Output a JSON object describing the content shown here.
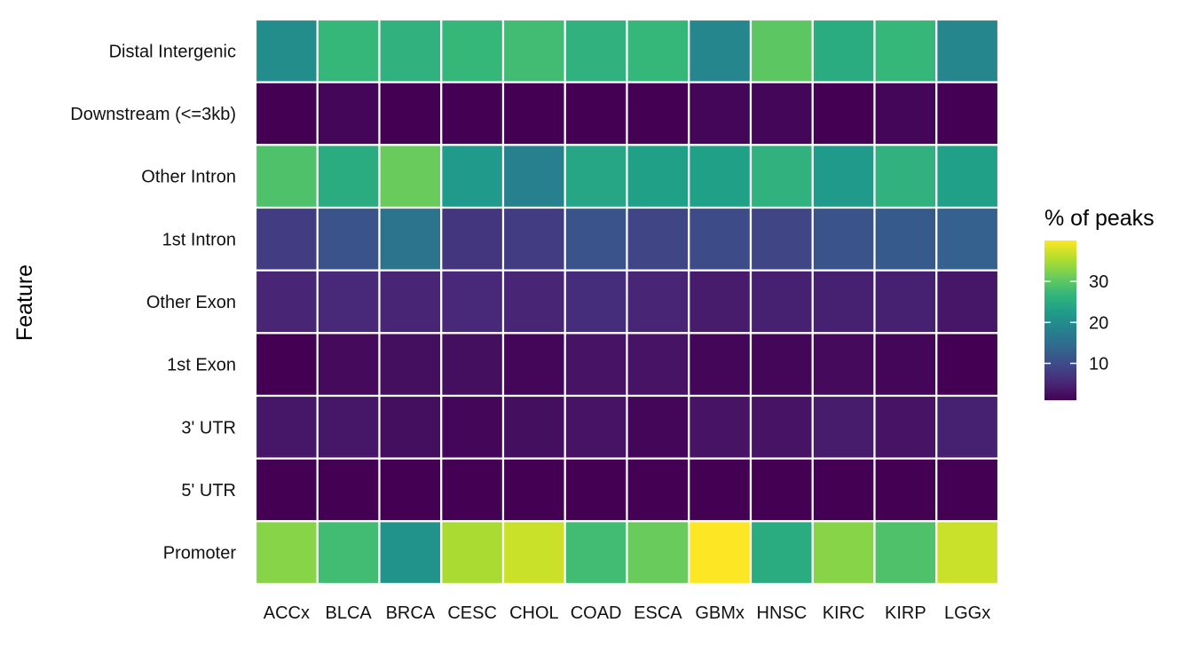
{
  "chart_data": {
    "type": "heatmap",
    "title": "",
    "xlabel": "",
    "ylabel": "Feature",
    "x_categories": [
      "ACCx",
      "BLCA",
      "BRCA",
      "CESC",
      "CHOL",
      "COAD",
      "ESCA",
      "GBMx",
      "HNSC",
      "KIRC",
      "KIRP",
      "LGGx"
    ],
    "y_categories": [
      "Distal Intergenic",
      "Downstream (<=3kb)",
      "Other Intron",
      "1st Intron",
      "Other Exon",
      "1st Exon",
      "3' UTR",
      "5' UTR",
      "Promoter"
    ],
    "values": [
      [
        20,
        27,
        26,
        27,
        28,
        26,
        27,
        19,
        30,
        25,
        27,
        19
      ],
      [
        1,
        1.5,
        1,
        1,
        1,
        1,
        1,
        1.5,
        1.5,
        1,
        1.5,
        1
      ],
      [
        29,
        25,
        31,
        22,
        18,
        24,
        23,
        23,
        26,
        22,
        26,
        23
      ],
      [
        8,
        11,
        16,
        7,
        8,
        11,
        9,
        10,
        9,
        11,
        12,
        13
      ],
      [
        5,
        5.5,
        5,
        5.5,
        5,
        6,
        5,
        4,
        4.5,
        4.5,
        4.5,
        3.5
      ],
      [
        1,
        2,
        2.5,
        2.5,
        1.5,
        3,
        3,
        1.5,
        1.5,
        2,
        1.5,
        1
      ],
      [
        3.5,
        3.5,
        2.5,
        1.5,
        2.5,
        3,
        1.5,
        3,
        3,
        4,
        3,
        4.5
      ],
      [
        1,
        1,
        1,
        1,
        1,
        1,
        1,
        1,
        1,
        1,
        1,
        1
      ],
      [
        33,
        28,
        21,
        35,
        37,
        28,
        31,
        40,
        25,
        33,
        29,
        37
      ]
    ],
    "color_scale": {
      "name": "viridis",
      "min": 1,
      "max": 40,
      "stops": [
        "#440154",
        "#482878",
        "#3E4A89",
        "#31688E",
        "#26828E",
        "#1F9E89",
        "#35B779",
        "#6DCD59",
        "#B4DE2C",
        "#FDE725"
      ]
    },
    "legend": {
      "title": "% of peaks",
      "ticks": [
        10,
        20,
        30
      ],
      "tick_labels": [
        "10",
        "20",
        "30"
      ],
      "placement": "right"
    },
    "grid": false
  }
}
